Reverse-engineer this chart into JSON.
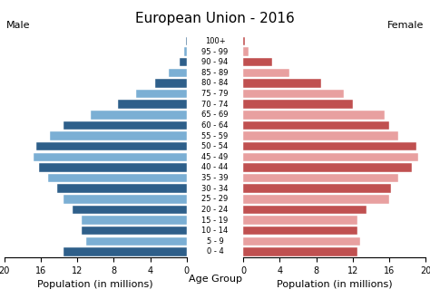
{
  "title": "European Union - 2016",
  "age_groups": [
    "0 - 4",
    "5 - 9",
    "10 - 14",
    "15 - 19",
    "20 - 24",
    "25 - 29",
    "30 - 34",
    "35 - 39",
    "40 - 44",
    "45 - 49",
    "50 - 54",
    "55 - 59",
    "60 - 64",
    "65 - 69",
    "70 - 74",
    "75 - 79",
    "80 - 84",
    "85 - 89",
    "90 - 94",
    "95 - 99",
    "100+"
  ],
  "male": [
    13.5,
    11.0,
    11.5,
    11.5,
    12.5,
    13.5,
    14.2,
    15.2,
    16.2,
    16.8,
    16.5,
    15.0,
    13.5,
    10.5,
    7.5,
    5.5,
    3.5,
    2.0,
    0.8,
    0.3,
    0.1
  ],
  "female": [
    12.5,
    12.8,
    12.5,
    12.5,
    13.5,
    16.0,
    16.2,
    17.0,
    18.5,
    19.2,
    19.0,
    17.0,
    16.0,
    15.5,
    12.0,
    11.0,
    8.5,
    5.0,
    3.2,
    0.6,
    0.15
  ],
  "male_dark": "#2e5f8a",
  "male_light": "#7bafd4",
  "female_dark": "#c05050",
  "female_light": "#e8a0a0",
  "xlim": 20,
  "xlabel_left": "Population (in millions)",
  "xlabel_center": "Age Group",
  "xlabel_right": "Population (in millions)",
  "label_male": "Male",
  "label_female": "Female",
  "bg_color": "#ffffff",
  "tick_fontsize": 7,
  "label_fontsize": 8,
  "age_label_fontsize": 6.0,
  "title_fontsize": 11
}
